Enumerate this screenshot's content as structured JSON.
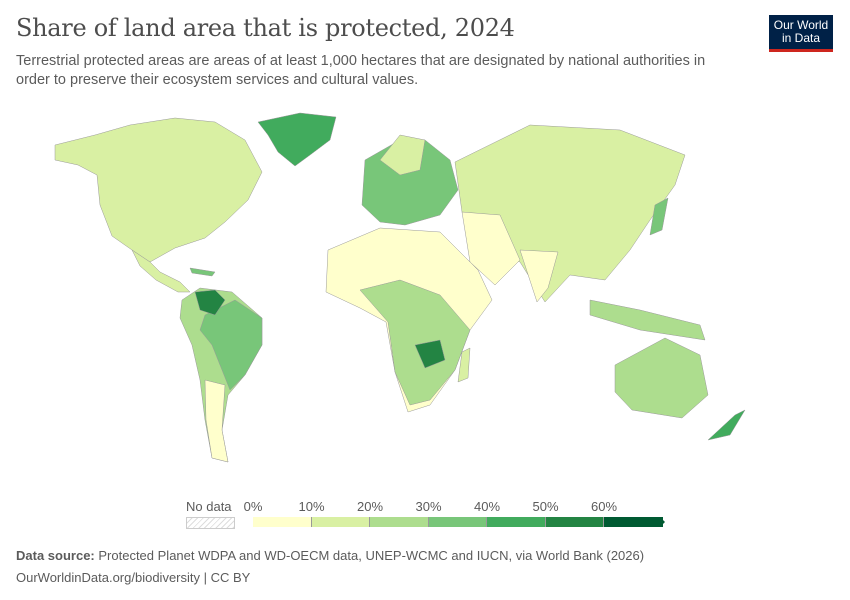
{
  "title": "Share of land area that is protected, 2024",
  "subtitle": "Terrestrial protected areas are areas of at least 1,000 hectares that are designated by national authorities in order to preserve their ecosystem services and cultural values.",
  "logo": {
    "line1": "Our World",
    "line2": "in Data"
  },
  "legend": {
    "no_data_label": "No data",
    "ticks": [
      "0%",
      "10%",
      "20%",
      "30%",
      "40%",
      "50%",
      "60%"
    ],
    "bins": [
      {
        "min": 0,
        "max": 10,
        "color": "#ffffcc"
      },
      {
        "min": 10,
        "max": 20,
        "color": "#d9f0a3"
      },
      {
        "min": 20,
        "max": 30,
        "color": "#addd8e"
      },
      {
        "min": 30,
        "max": 40,
        "color": "#78c679"
      },
      {
        "min": 40,
        "max": 50,
        "color": "#41ab5d"
      },
      {
        "min": 50,
        "max": 60,
        "color": "#238443"
      },
      {
        "min": 60,
        "max": null,
        "color": "#005a32"
      }
    ]
  },
  "footer": {
    "source_label": "Data source:",
    "source_text": "Protected Planet WDPA and WD-OECM data, UNEP-WCMC and IUCN, via World Bank (2026)",
    "url_license": "OurWorldinData.org/biodiversity | CC BY"
  }
}
